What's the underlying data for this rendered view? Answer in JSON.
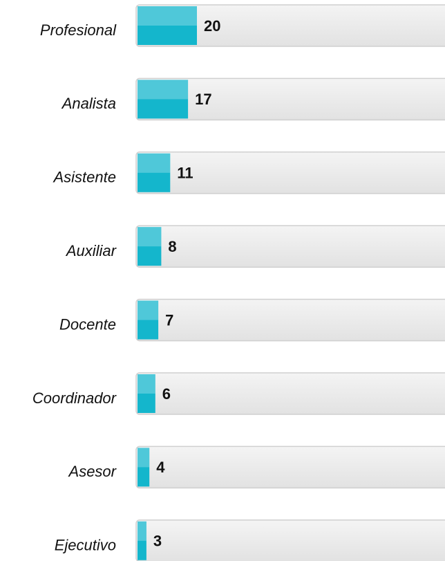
{
  "chart_data": {
    "type": "bar",
    "orientation": "horizontal",
    "categories": [
      "Profesional",
      "Analista",
      "Asistente",
      "Auxiliar",
      "Docente",
      "Coordinador",
      "Asesor",
      "Ejecutivo"
    ],
    "values": [
      20,
      17,
      11,
      8,
      7,
      6,
      4,
      3
    ],
    "color": "#14b6cc",
    "xlim": [
      0,
      100
    ]
  }
}
